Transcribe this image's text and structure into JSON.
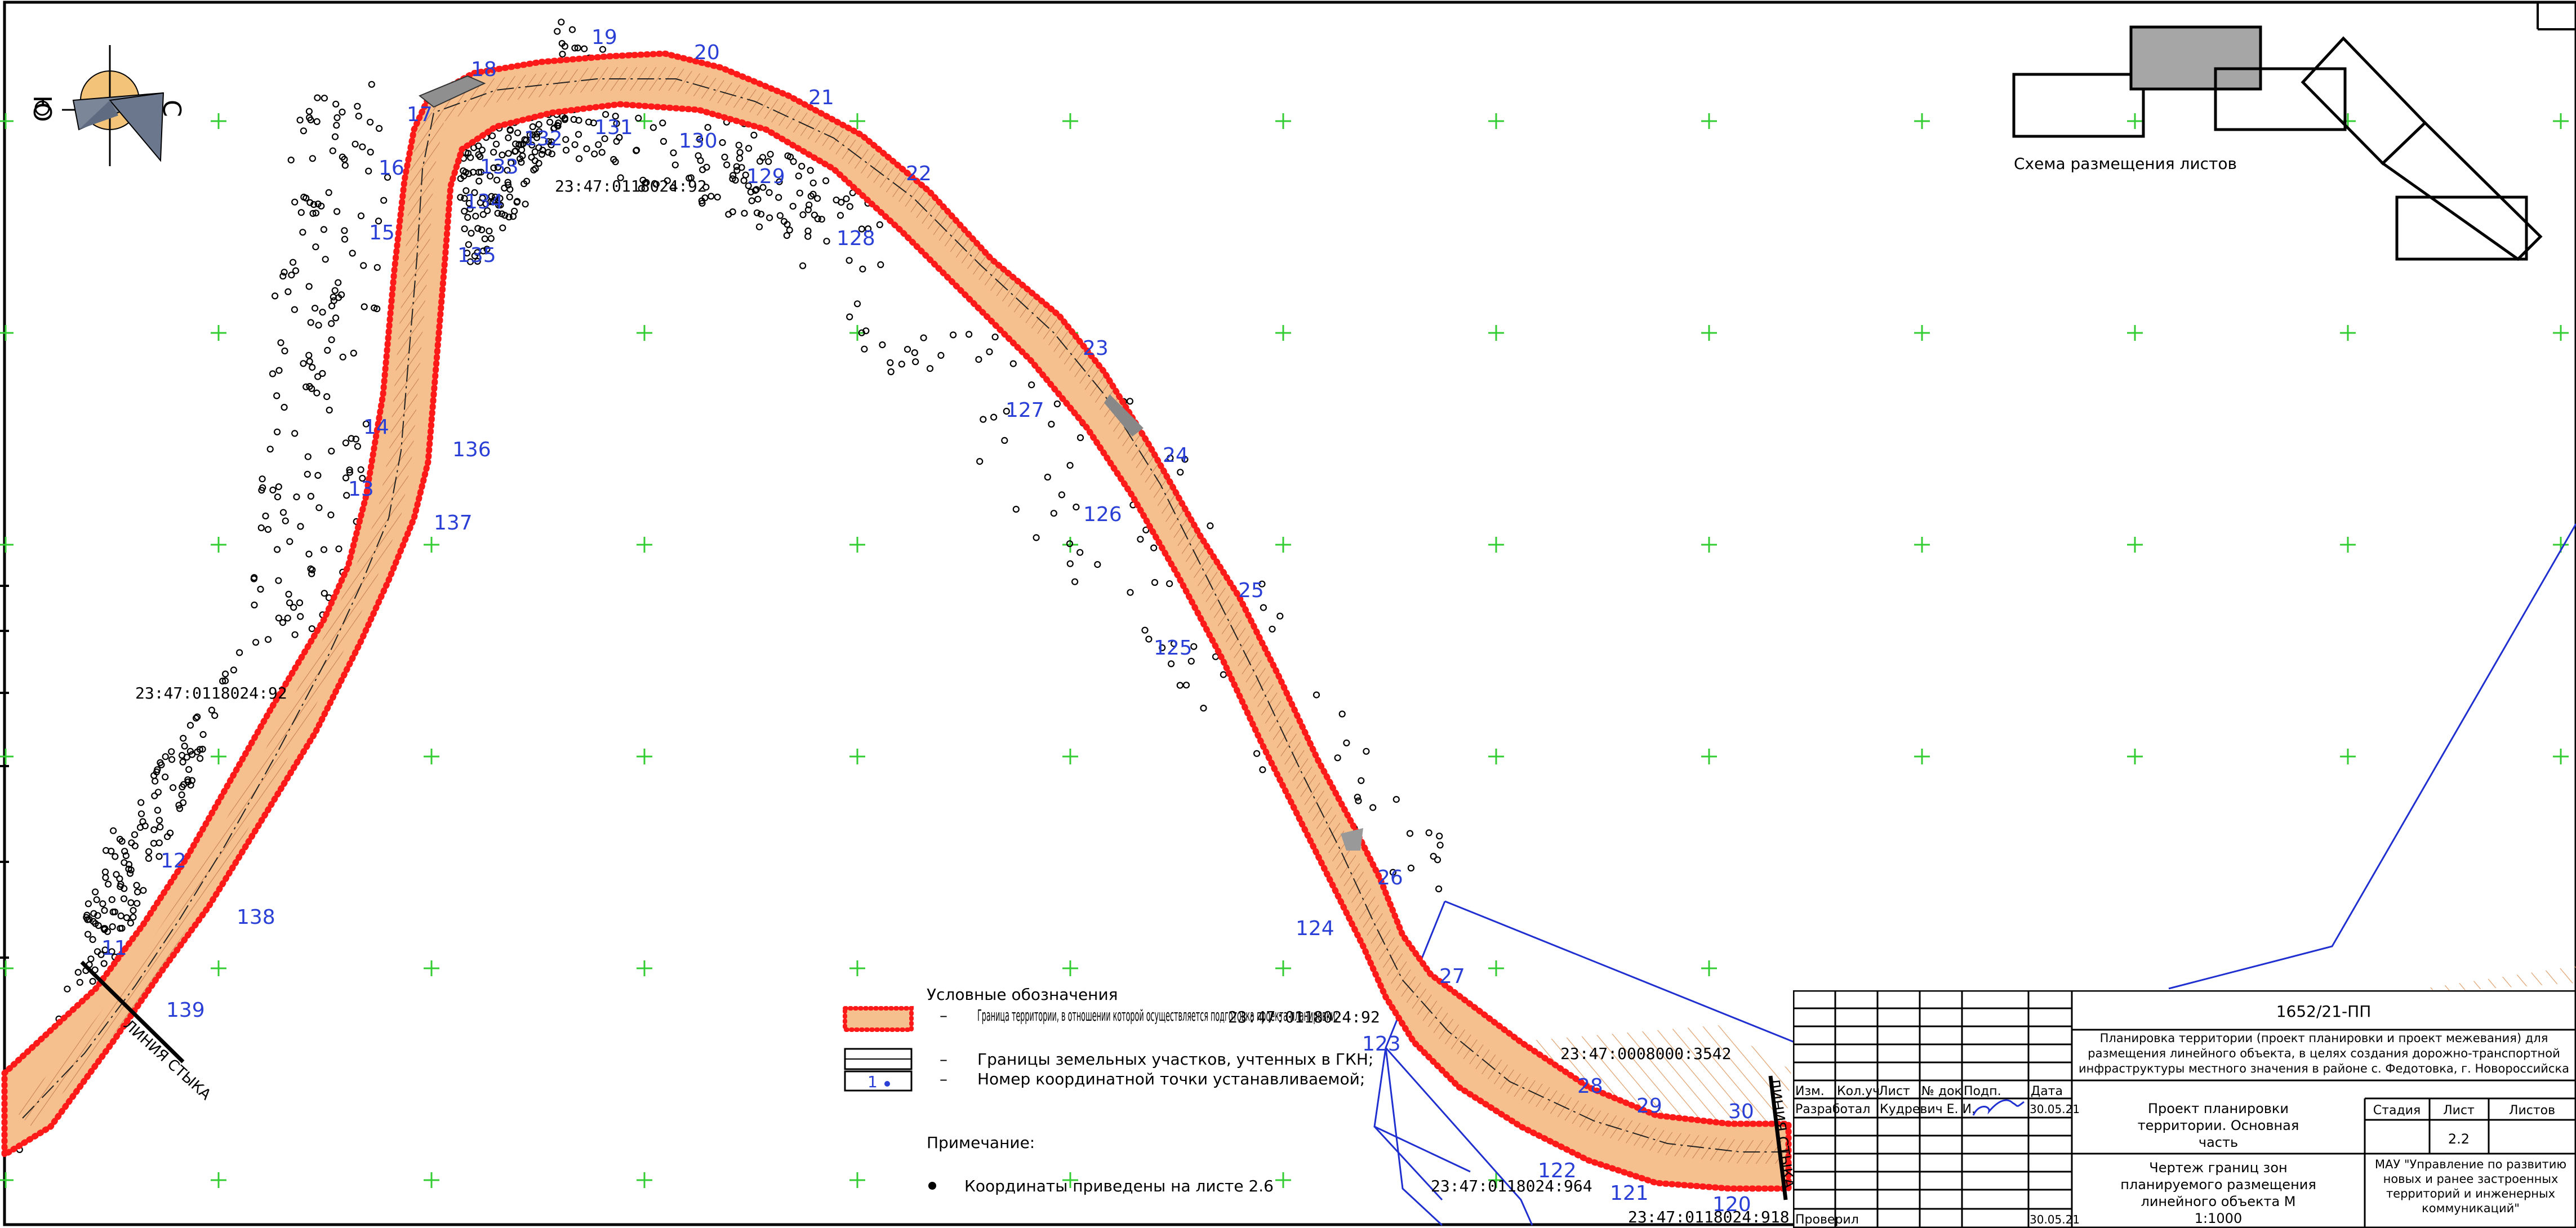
{
  "drawing": {
    "legend": {
      "title": "Условные обозначения",
      "items": [
        "Граница территории, в отношении которой осуществляется подготовка проекта планировки;",
        "Границы земельных участков, учтенных в ГКН;",
        "Номер координатной точки устанавливаемой;"
      ],
      "dash": "–",
      "sample_number": "1"
    },
    "note": {
      "title": "Примечание:",
      "text": "Координаты приведены на листе 2.6"
    },
    "sheet_scheme_label": "Схема размещения листов",
    "compass": {
      "north": "С",
      "south": "Ю"
    },
    "match_lines": [
      "ЛИНИЯ СТЫКА",
      "ЛИНИЯ СТЫКА"
    ],
    "parcels": {
      "p1": "23:47:0118024:92",
      "p2": "23:47:0118024:92",
      "p3": "23:47:0118024:92",
      "p4": "23:47:0008000:3542",
      "p5": "23:47:0118024:964",
      "p6": "23:47:0118024:918"
    },
    "points_outer": [
      "11",
      "12",
      "13",
      "14",
      "15",
      "16",
      "17",
      "18",
      "19",
      "20",
      "21",
      "22",
      "23",
      "24",
      "25",
      "26",
      "27",
      "28",
      "29",
      "30"
    ],
    "points_inner": [
      "120",
      "121",
      "122",
      "123",
      "124",
      "125",
      "126",
      "127",
      "128",
      "129",
      "130",
      "131",
      "132",
      "133",
      "134",
      "135",
      "136",
      "137",
      "138",
      "139"
    ]
  },
  "title_block": {
    "code": "1652/21-ПП",
    "project_title": "Планировка территории (проект планировки и проект межевания) для размещения линейного объекта, в целях создания дорожно-транспортной инфраструктуры местного значения в районе с. Федотовка, г. Новороссийска",
    "headers": {
      "izm": "Изм.",
      "kol": "Кол.уч",
      "list": "Лист",
      "doc": "№ док",
      "podp": "Подп.",
      "date": "Дата"
    },
    "developed_label": "Разработал",
    "developed_name": "Кудревич Е. И.",
    "developed_date": "30.05.21",
    "checked_label": "Проверил",
    "checked_date": "30.05.21",
    "part_title": "Проект планировки территории. Основная часть",
    "stage_label": "Стадия",
    "sheet_label": "Лист",
    "sheets_label": "Листов",
    "sheet_no": "2.2",
    "drawing_title": "Чертеж границ зон планируемого размещения линейного объекта М 1:1000",
    "organization": "МАУ \"Управление по развитию новых и ранее застроенных территорий и инженерных коммуникаций\""
  },
  "colors": {
    "boundary": "#ff1a1a",
    "road_fill": "#f6c08e",
    "point_label": "#2a3fd6",
    "grid_cross": "#33cc33",
    "cadastre_line": "#1f2fd0"
  }
}
